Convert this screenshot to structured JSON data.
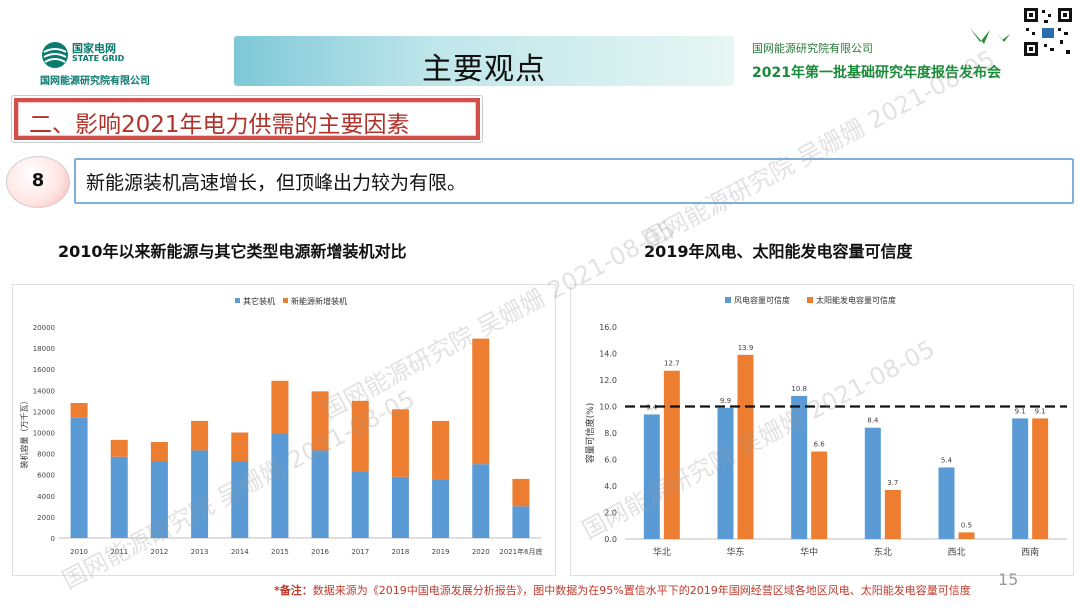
{
  "header": {
    "brand_cn": "国家电网",
    "brand_en": "STATE GRID",
    "brand_sub": "国网能源研究院有限公司",
    "title": "主要观点",
    "org": "国网能源研究院有限公司",
    "event": "2021年第一批基础研究年度报告发布会"
  },
  "section": {
    "title": "二、影响2021年电力供需的主要因素"
  },
  "point": {
    "number": "8",
    "text": "新能源装机高速增长，但顶峰出力较为有限。"
  },
  "watermark": {
    "text": "国网能源研究院 吴姗姗 2021-08-05"
  },
  "colors": {
    "blue": "#5b9bd5",
    "orange": "#ed7d31",
    "title_bg": "#bfe6ea",
    "section_red": "#d34f49"
  },
  "chart_data": [
    {
      "type": "bar",
      "stacked": true,
      "title": "2010年以来新能源与其它类型电源新增装机对比",
      "ylabel": "装机容量（万千瓦）",
      "ylim": [
        0,
        20000
      ],
      "yticks": [
        0,
        2000,
        4000,
        6000,
        8000,
        10000,
        12000,
        14000,
        16000,
        18000,
        20000
      ],
      "categories": [
        "2010",
        "2011",
        "2012",
        "2013",
        "2014",
        "2015",
        "2016",
        "2017",
        "2018",
        "2019",
        "2020",
        "2021年6月底"
      ],
      "series": [
        {
          "name": "其它装机",
          "color": "#5b9bd5",
          "values": [
            11400,
            7700,
            7300,
            8300,
            7300,
            9900,
            8300,
            6300,
            5800,
            5500,
            7000,
            3000
          ]
        },
        {
          "name": "新能源新增装机",
          "color": "#ed7d31",
          "values": [
            1400,
            1600,
            1800,
            2800,
            2700,
            5000,
            5600,
            6700,
            6400,
            5600,
            11900,
            2600
          ]
        }
      ],
      "legend": "top"
    },
    {
      "type": "bar",
      "title": "2019年风电、太阳能发电容量可信度",
      "ylabel": "容量可信度(%)",
      "ylim": [
        0,
        16
      ],
      "yticks": [
        "0.0",
        "2.0",
        "4.0",
        "6.0",
        "8.0",
        "10.0",
        "12.0",
        "14.0",
        "16.0"
      ],
      "categories": [
        "华北",
        "华东",
        "华中",
        "东北",
        "西北",
        "西南"
      ],
      "series": [
        {
          "name": "风电容量可信度",
          "color": "#5b9bd5",
          "values": [
            9.4,
            9.9,
            10.8,
            8.4,
            5.4,
            9.1
          ],
          "labels": [
            "9.4",
            "9.9",
            "10.8",
            "8.4",
            "5.4",
            "9.1"
          ]
        },
        {
          "name": "太阳能发电容量可信度",
          "color": "#ed7d31",
          "values": [
            12.7,
            13.9,
            6.6,
            3.7,
            0.5,
            9.1
          ],
          "labels": [
            "12.7",
            "13.9",
            "6.6",
            "3.7",
            "0.5",
            "9.1"
          ]
        }
      ],
      "reference_line": {
        "value": 10,
        "style": "dashed"
      },
      "legend": "top"
    }
  ],
  "footer": {
    "label": "*备注：",
    "text": "数据来源为《2019中国电源发展分析报告》，图中数据为在95%置信水平下的2019年国网经营区域各地区风电、太阳能发电容量可信度"
  },
  "page": "15"
}
